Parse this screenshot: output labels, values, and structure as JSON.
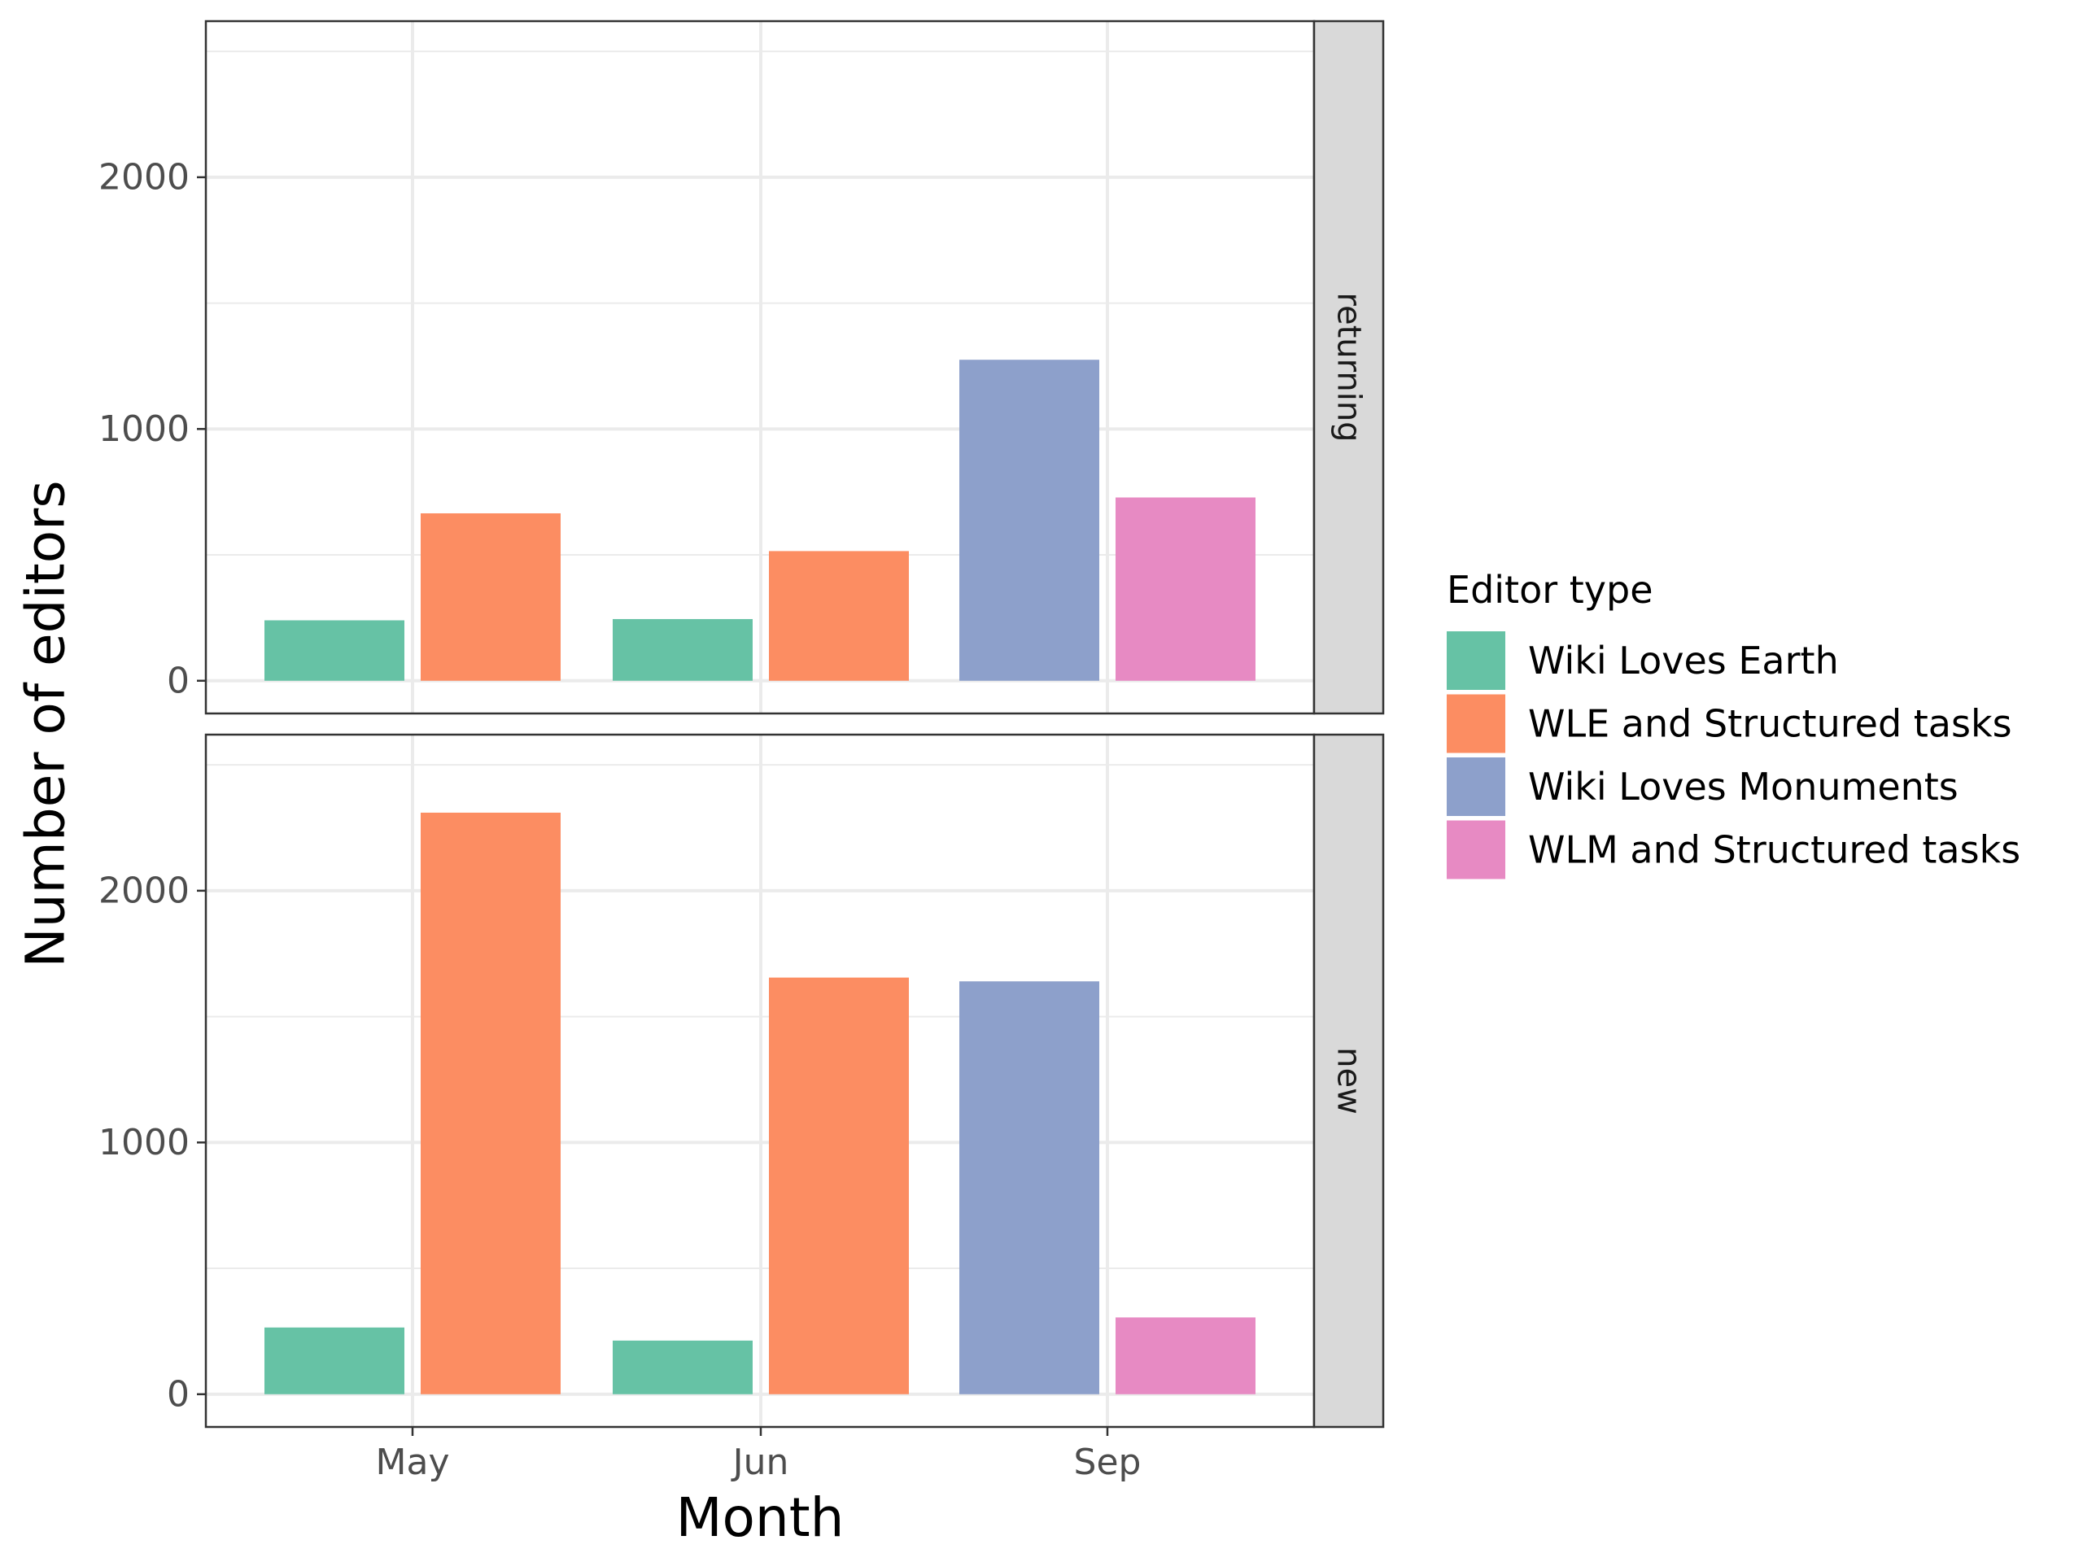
{
  "chart_data": {
    "type": "bar",
    "categories": [
      "May",
      "Jun",
      "Sep"
    ],
    "xlabel": "Month",
    "ylabel": "Number of editors",
    "ylim": [
      -130,
      2620
    ],
    "y_ticks": [
      0,
      1000,
      2000
    ],
    "grid": true,
    "legend": {
      "title": "Editor type",
      "placement": "right",
      "entries": [
        {
          "name": "Wiki Loves Earth",
          "color": "#66c2a5"
        },
        {
          "name": "WLE and Structured tasks",
          "color": "#fc8d62"
        },
        {
          "name": "Wiki Loves Monuments",
          "color": "#8da0cb"
        },
        {
          "name": "WLM and Structured tasks",
          "color": "#e78ac3"
        }
      ]
    },
    "facets": [
      {
        "label": "returning",
        "bars": [
          {
            "category": "May",
            "series": "Wiki Loves Earth",
            "value": 240
          },
          {
            "category": "May",
            "series": "WLE and Structured tasks",
            "value": 665
          },
          {
            "category": "Jun",
            "series": "Wiki Loves Earth",
            "value": 245
          },
          {
            "category": "Jun",
            "series": "WLE and Structured tasks",
            "value": 515
          },
          {
            "category": "Sep",
            "series": "Wiki Loves Monuments",
            "value": 1275
          },
          {
            "category": "Sep",
            "series": "WLM and Structured tasks",
            "value": 728
          }
        ]
      },
      {
        "label": "new",
        "bars": [
          {
            "category": "May",
            "series": "Wiki Loves Earth",
            "value": 265
          },
          {
            "category": "May",
            "series": "WLE and Structured tasks",
            "value": 2310
          },
          {
            "category": "Jun",
            "series": "Wiki Loves Earth",
            "value": 213
          },
          {
            "category": "Jun",
            "series": "WLE and Structured tasks",
            "value": 1655
          },
          {
            "category": "Sep",
            "series": "Wiki Loves Monuments",
            "value": 1640
          },
          {
            "category": "Sep",
            "series": "WLM and Structured tasks",
            "value": 305
          }
        ]
      }
    ]
  }
}
